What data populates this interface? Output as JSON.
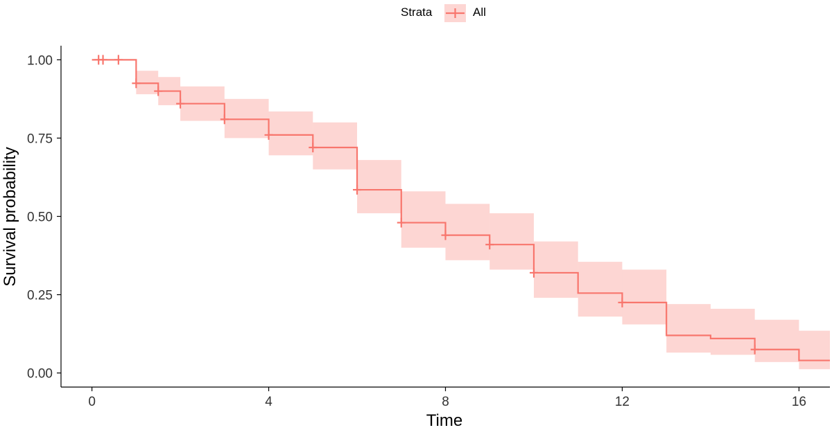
{
  "chart_data": {
    "type": "line",
    "subtype": "kaplan-meier step with confidence band",
    "xlabel": "Time",
    "ylabel": "Survival probability",
    "xlim": [
      -0.7,
      16.7
    ],
    "ylim": [
      -0.045,
      1.045
    ],
    "x_ticks": [
      0,
      4,
      8,
      12,
      16
    ],
    "x_tick_labels": [
      "0",
      "4",
      "8",
      "12",
      "16"
    ],
    "y_ticks": [
      0,
      0.25,
      0.5,
      0.75,
      1
    ],
    "y_tick_labels": [
      "0.00",
      "0.25",
      "0.50",
      "0.75",
      "1.00"
    ],
    "grid": false,
    "legend": {
      "position": "top",
      "title": "Strata",
      "entries": [
        "All"
      ]
    },
    "colors": {
      "line": "#F8766D",
      "band": "#F8766D",
      "band_opacity": 0.3
    },
    "series": [
      {
        "name": "All",
        "steps": [
          {
            "x": 0,
            "y": 1.0,
            "lower": 1.0,
            "upper": 1.0
          },
          {
            "x": 1,
            "y": 0.925,
            "lower": 0.89,
            "upper": 0.965
          },
          {
            "x": 1.5,
            "y": 0.9,
            "lower": 0.855,
            "upper": 0.945
          },
          {
            "x": 2,
            "y": 0.86,
            "lower": 0.805,
            "upper": 0.915
          },
          {
            "x": 3,
            "y": 0.81,
            "lower": 0.75,
            "upper": 0.875
          },
          {
            "x": 4,
            "y": 0.76,
            "lower": 0.695,
            "upper": 0.835
          },
          {
            "x": 5,
            "y": 0.72,
            "lower": 0.65,
            "upper": 0.8
          },
          {
            "x": 6,
            "y": 0.585,
            "lower": 0.51,
            "upper": 0.68
          },
          {
            "x": 7,
            "y": 0.48,
            "lower": 0.4,
            "upper": 0.58
          },
          {
            "x": 8,
            "y": 0.44,
            "lower": 0.36,
            "upper": 0.54
          },
          {
            "x": 9,
            "y": 0.41,
            "lower": 0.33,
            "upper": 0.51
          },
          {
            "x": 10,
            "y": 0.32,
            "lower": 0.24,
            "upper": 0.42
          },
          {
            "x": 11,
            "y": 0.255,
            "lower": 0.18,
            "upper": 0.355
          },
          {
            "x": 12,
            "y": 0.225,
            "lower": 0.155,
            "upper": 0.33
          },
          {
            "x": 13,
            "y": 0.12,
            "lower": 0.065,
            "upper": 0.22
          },
          {
            "x": 14,
            "y": 0.11,
            "lower": 0.058,
            "upper": 0.205
          },
          {
            "x": 15,
            "y": 0.075,
            "lower": 0.035,
            "upper": 0.17
          },
          {
            "x": 16,
            "y": 0.04,
            "lower": 0.012,
            "upper": 0.135
          }
        ],
        "x_end": 16.7,
        "censor_marks": [
          {
            "x": 0.15,
            "y": 1.0
          },
          {
            "x": 0.25,
            "y": 1.0
          },
          {
            "x": 0.6,
            "y": 1.0
          },
          {
            "x": 1.0,
            "y": 0.925
          },
          {
            "x": 1.5,
            "y": 0.9
          },
          {
            "x": 2.0,
            "y": 0.86
          },
          {
            "x": 3.0,
            "y": 0.81
          },
          {
            "x": 4.0,
            "y": 0.76
          },
          {
            "x": 5.0,
            "y": 0.72
          },
          {
            "x": 6.0,
            "y": 0.585
          },
          {
            "x": 7.0,
            "y": 0.48
          },
          {
            "x": 8.0,
            "y": 0.44
          },
          {
            "x": 9.0,
            "y": 0.41
          },
          {
            "x": 10.0,
            "y": 0.32
          },
          {
            "x": 12.0,
            "y": 0.225
          },
          {
            "x": 15.0,
            "y": 0.075
          }
        ]
      }
    ]
  }
}
